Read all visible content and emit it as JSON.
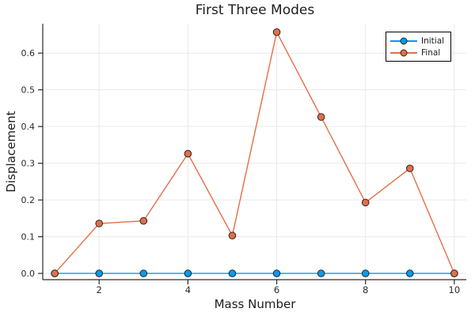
{
  "chart_data": {
    "type": "line",
    "title": "First Three Modes",
    "xlabel": "Mass Number",
    "ylabel": "Displacement",
    "x": [
      1,
      2,
      3,
      4,
      5,
      6,
      7,
      8,
      9,
      10
    ],
    "series": [
      {
        "name": "Initial",
        "color": "#009AF9",
        "marker": "circle",
        "values": [
          0.0,
          0.0,
          0.0,
          0.0,
          0.0,
          0.0,
          0.0,
          0.0,
          0.0,
          0.0
        ]
      },
      {
        "name": "Final",
        "color": "#E36F47",
        "marker": "circle",
        "values": [
          0.0,
          0.136,
          0.143,
          0.326,
          0.103,
          0.657,
          0.426,
          0.193,
          0.286,
          0.0
        ]
      }
    ],
    "xticks": [
      2,
      4,
      6,
      8,
      10
    ],
    "xtick_labels": [
      "2",
      "4",
      "6",
      "8",
      "10"
    ],
    "yticks": [
      0.0,
      0.1,
      0.2,
      0.3,
      0.4,
      0.5,
      0.6
    ],
    "ytick_labels": [
      "0.0",
      "0.1",
      "0.2",
      "0.3",
      "0.4",
      "0.5",
      "0.6"
    ],
    "xlim": [
      0.73,
      10.27
    ],
    "ylim": [
      -0.017,
      0.68
    ],
    "grid": true,
    "legend_position": "top-right",
    "colors": {
      "grid": "#E9E9E9",
      "axis": "#2A2A2A",
      "text": "#2A2A2A",
      "marker_stroke": "#262626",
      "background": "#FFFFFF"
    }
  }
}
